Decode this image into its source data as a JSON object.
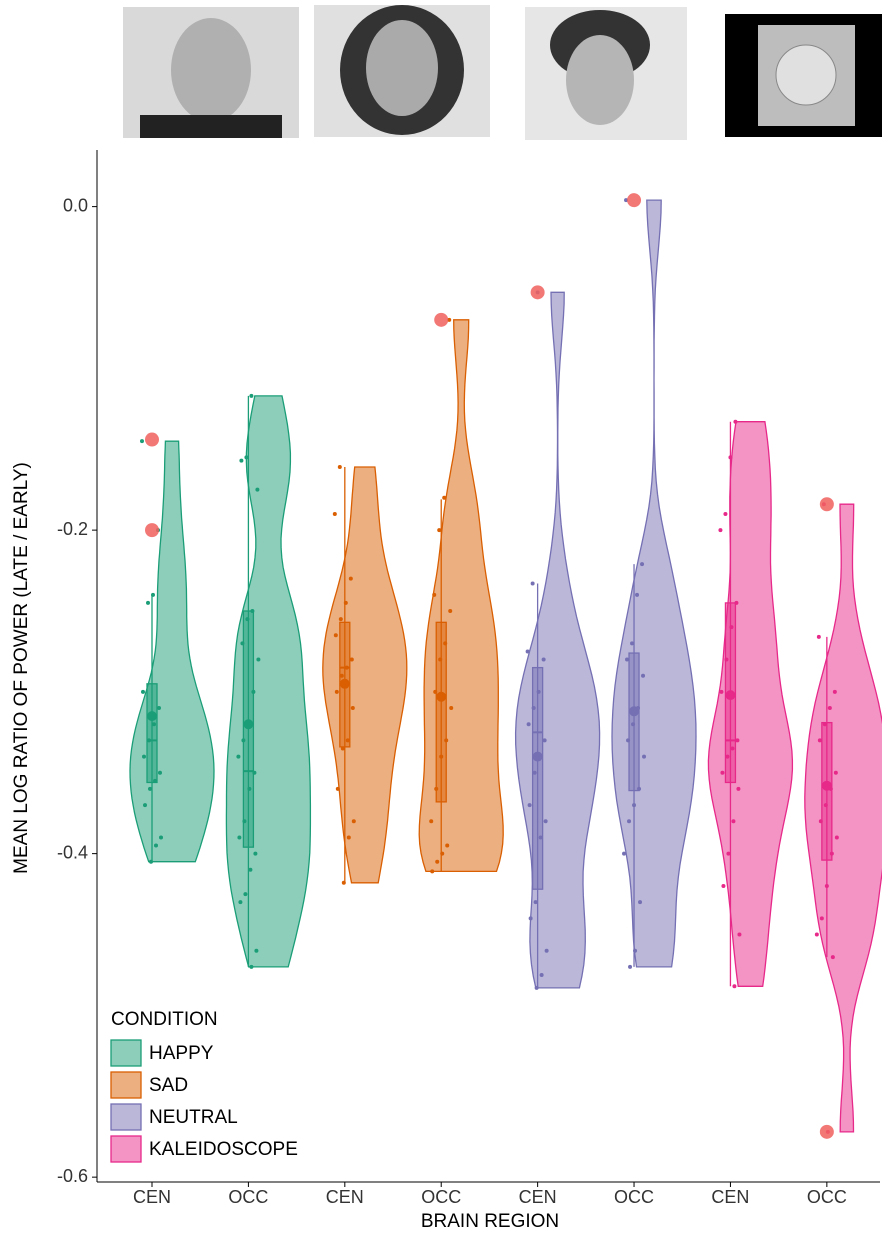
{
  "chart_data": {
    "type": "violin",
    "y_label": "MEAN LOG RATIO OF POWER (LATE / EARLY)",
    "x_label": "BRAIN REGION",
    "legend_title": "CONDITION",
    "categories": [
      "CEN",
      "OCC",
      "CEN",
      "OCC",
      "CEN",
      "OCC",
      "CEN",
      "OCC"
    ],
    "ylim": [
      -0.603,
      0.035
    ],
    "yticks": [
      {
        "value": 0,
        "label": "0.0"
      },
      -0.2,
      -0.4,
      -0.6
    ],
    "outlier_color": "#f0605e",
    "series": [
      {
        "name": "HAPPY",
        "color": "#1b9e77",
        "groups": [
          {
            "whisker_low": -0.405,
            "q1": -0.356,
            "median": -0.33,
            "q3": -0.295,
            "whisker_high": -0.24,
            "mean": -0.315,
            "outliers": [
              -0.144,
              -0.2
            ],
            "points": [
              -0.145,
              -0.2,
              -0.24,
              -0.245,
              -0.3,
              -0.31,
              -0.32,
              -0.33,
              -0.34,
              -0.35,
              -0.355,
              -0.36,
              -0.37,
              -0.39,
              -0.395,
              -0.405
            ]
          },
          {
            "whisker_low": -0.47,
            "q1": -0.396,
            "median": -0.349,
            "q3": -0.25,
            "whisker_high": -0.117,
            "mean": -0.32,
            "outliers": [],
            "points": [
              -0.117,
              -0.155,
              -0.157,
              -0.175,
              -0.25,
              -0.255,
              -0.27,
              -0.28,
              -0.3,
              -0.32,
              -0.33,
              -0.34,
              -0.35,
              -0.36,
              -0.38,
              -0.39,
              -0.4,
              -0.41,
              -0.425,
              -0.43,
              -0.46,
              -0.47
            ]
          }
        ]
      },
      {
        "name": "SAD",
        "color": "#d95f02",
        "groups": [
          {
            "whisker_low": -0.418,
            "q1": -0.334,
            "median": -0.285,
            "q3": -0.257,
            "whisker_high": -0.161,
            "mean": -0.295,
            "outliers": [],
            "points": [
              -0.161,
              -0.19,
              -0.23,
              -0.245,
              -0.255,
              -0.265,
              -0.28,
              -0.285,
              -0.29,
              -0.3,
              -0.31,
              -0.33,
              -0.335,
              -0.36,
              -0.38,
              -0.39,
              -0.418
            ]
          },
          {
            "whisker_low": -0.411,
            "q1": -0.368,
            "median": -0.302,
            "q3": -0.257,
            "whisker_high": -0.181,
            "mean": -0.303,
            "outliers": [
              -0.07
            ],
            "points": [
              -0.07,
              -0.18,
              -0.2,
              -0.24,
              -0.25,
              -0.27,
              -0.28,
              -0.3,
              -0.31,
              -0.33,
              -0.34,
              -0.36,
              -0.38,
              -0.395,
              -0.4,
              -0.405,
              -0.411
            ]
          }
        ]
      },
      {
        "name": "NEUTRAL",
        "color": "#7570b3",
        "groups": [
          {
            "whisker_low": -0.483,
            "q1": -0.422,
            "median": -0.325,
            "q3": -0.285,
            "whisker_high": -0.233,
            "mean": -0.34,
            "outliers": [
              -0.053
            ],
            "points": [
              -0.053,
              -0.233,
              -0.275,
              -0.28,
              -0.3,
              -0.31,
              -0.32,
              -0.33,
              -0.34,
              -0.35,
              -0.37,
              -0.38,
              -0.39,
              -0.43,
              -0.44,
              -0.46,
              -0.475,
              -0.483
            ]
          },
          {
            "whisker_low": -0.47,
            "q1": -0.361,
            "median": -0.311,
            "q3": -0.276,
            "whisker_high": -0.221,
            "mean": -0.312,
            "outliers": [
              0.004
            ],
            "points": [
              0.004,
              -0.221,
              -0.24,
              -0.27,
              -0.28,
              -0.29,
              -0.31,
              -0.32,
              -0.33,
              -0.34,
              -0.36,
              -0.37,
              -0.38,
              -0.4,
              -0.43,
              -0.46,
              -0.47
            ]
          }
        ]
      },
      {
        "name": "KALEIDOSCOPE",
        "color": "#e7298a",
        "groups": [
          {
            "whisker_low": -0.482,
            "q1": -0.356,
            "median": -0.33,
            "q3": -0.245,
            "whisker_high": -0.133,
            "mean": -0.302,
            "outliers": [],
            "points": [
              -0.133,
              -0.155,
              -0.19,
              -0.2,
              -0.245,
              -0.26,
              -0.28,
              -0.3,
              -0.33,
              -0.335,
              -0.34,
              -0.35,
              -0.36,
              -0.38,
              -0.4,
              -0.42,
              -0.45,
              -0.482
            ]
          },
          {
            "whisker_low": -0.464,
            "q1": -0.404,
            "median": -0.358,
            "q3": -0.319,
            "whisker_high": -0.266,
            "mean": -0.358,
            "outliers": [
              -0.184,
              -0.572
            ],
            "points": [
              -0.184,
              -0.266,
              -0.3,
              -0.31,
              -0.32,
              -0.33,
              -0.35,
              -0.36,
              -0.37,
              -0.38,
              -0.39,
              -0.4,
              -0.42,
              -0.44,
              -0.45,
              -0.464,
              -0.572
            ]
          }
        ]
      }
    ]
  }
}
